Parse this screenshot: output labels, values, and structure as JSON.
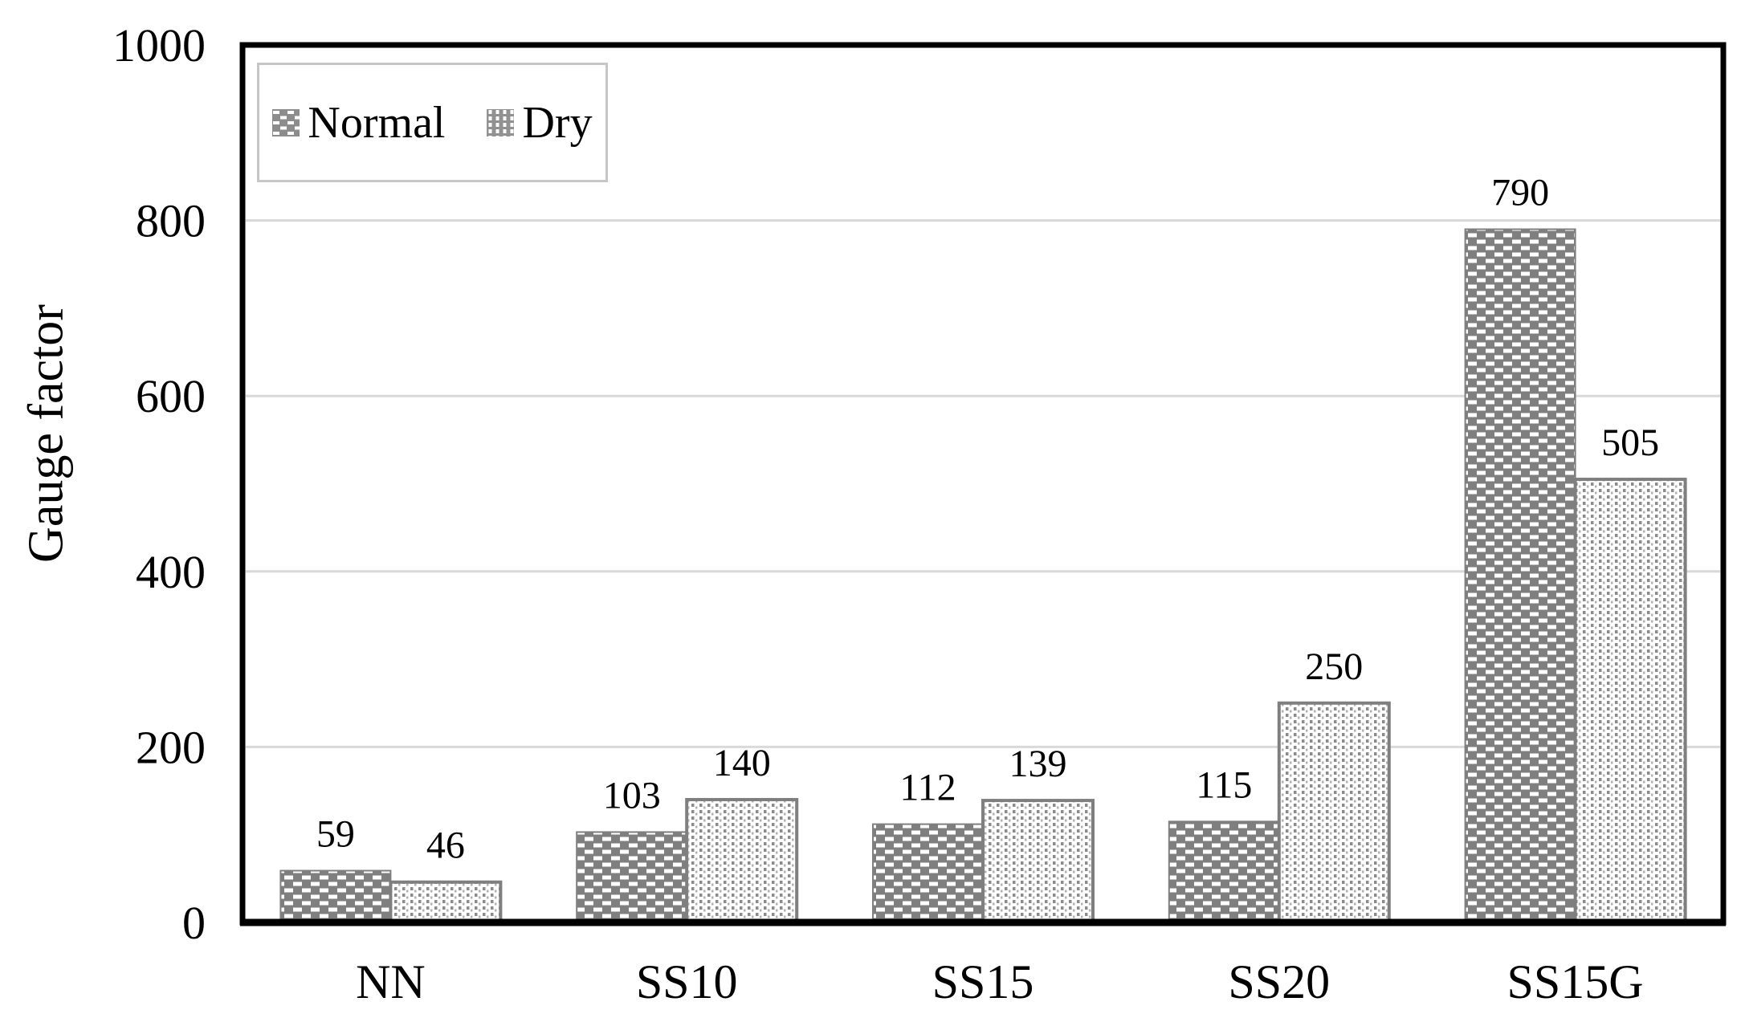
{
  "figure": {
    "background": "#ffffff"
  },
  "chart_data": {
    "type": "bar",
    "title": "",
    "ylabel": "Gauge factor",
    "xlabel": "",
    "categories": [
      "NN",
      "SS10",
      "SS15",
      "SS20",
      "SS15G"
    ],
    "series": [
      {
        "name": "Normal",
        "pattern": "checker",
        "values": [
          59,
          103,
          112,
          115,
          790
        ]
      },
      {
        "name": "Dry",
        "pattern": "dots",
        "values": [
          46,
          140,
          139,
          250,
          505
        ]
      }
    ],
    "data_labels": true,
    "ylim": [
      0,
      1000
    ],
    "ytick_step": 200,
    "yticks": [
      0,
      200,
      400,
      600,
      800,
      1000
    ],
    "grid": "horizontal-only",
    "legend_position": "top-left-inside",
    "colors": {
      "normal_fill": "#7f7f7f",
      "dry_fill": "#ffffff",
      "dry_dot": "#8c8c8c",
      "bar_stroke": "#7f7f7f",
      "grid": "#d9d9d9",
      "axis": "#000000",
      "text": "#000000",
      "legend_border": "#c6c6c6"
    }
  }
}
